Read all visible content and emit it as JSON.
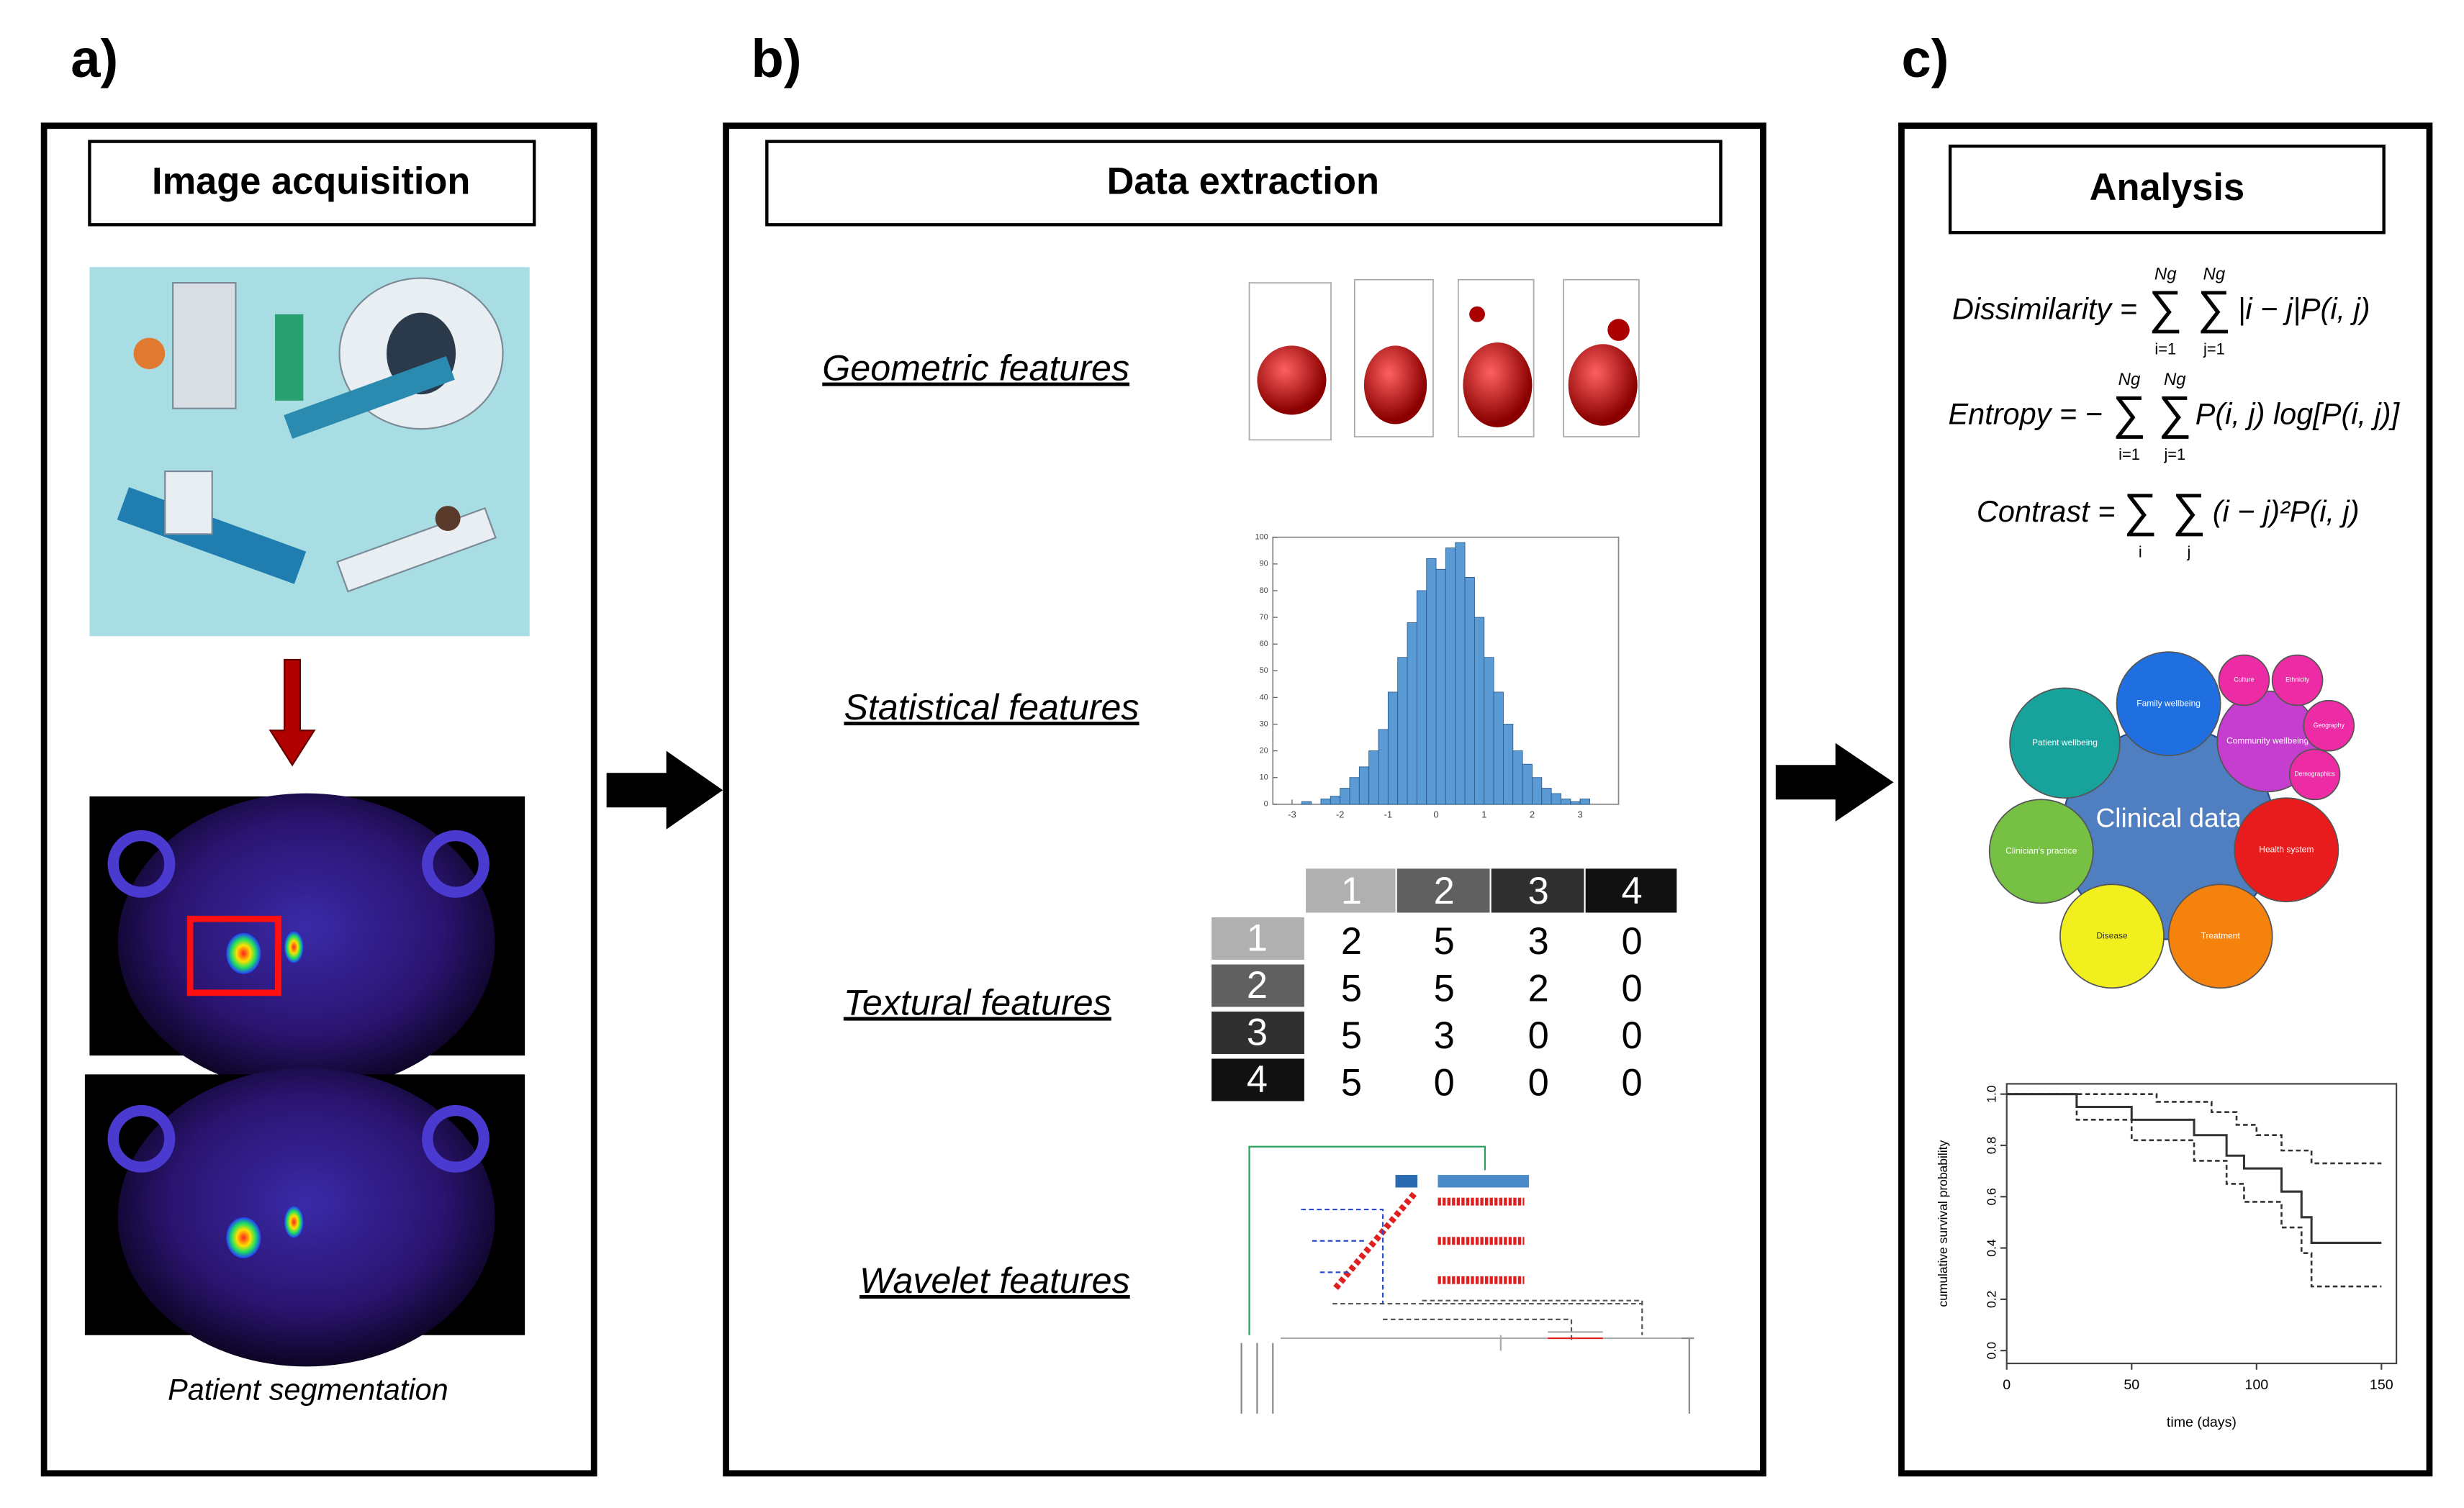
{
  "panels": [
    {
      "label": "a)",
      "title": "Image acquisition",
      "caption": "Patient segmentation"
    },
    {
      "label": "b)",
      "title": "Data extraction",
      "features": [
        "Geometric features",
        "Statistical features",
        "Textural features",
        "Wavelet features"
      ],
      "glcm": {
        "columns": [
          "1",
          "2",
          "3",
          "4"
        ],
        "rows": [
          {
            "label": "1",
            "values": [
              2,
              5,
              3,
              0
            ]
          },
          {
            "label": "2",
            "values": [
              5,
              5,
              2,
              0
            ]
          },
          {
            "label": "3",
            "values": [
              5,
              3,
              0,
              0
            ]
          },
          {
            "label": "4",
            "values": [
              5,
              0,
              0,
              0
            ]
          }
        ]
      },
      "histogram": {
        "type": "histogram",
        "color": "#5b9bd5",
        "bins": [
          -2.8,
          -2.6,
          -2.4,
          -2.2,
          -2,
          -1.8,
          -1.6,
          -1.4,
          -1.2,
          -1,
          -0.8,
          -0.6,
          -0.4,
          -0.2,
          0,
          0.2,
          0.4,
          0.6,
          0.8,
          1,
          1.2,
          1.4,
          1.6,
          1.8,
          2,
          2.2,
          2.4,
          2.6,
          2.8,
          3,
          3.2
        ],
        "counts": [
          1,
          0,
          2,
          3,
          6,
          10,
          14,
          20,
          28,
          42,
          55,
          68,
          80,
          92,
          88,
          96,
          98,
          85,
          70,
          55,
          42,
          30,
          20,
          15,
          10,
          6,
          4,
          2,
          1,
          2
        ],
        "xlim": [
          -3.4,
          3.8
        ],
        "ylim": [
          0,
          100
        ],
        "xticks": [
          -3,
          -2,
          -1,
          0,
          1,
          2,
          3
        ],
        "yticks": [
          0,
          10,
          20,
          30,
          40,
          50,
          60,
          70,
          80,
          90,
          100
        ]
      }
    },
    {
      "label": "c)",
      "title": "Analysis",
      "formulas": [
        {
          "lhs": "Dissimilarity =",
          "sums": [
            {
              "symbol": "∑",
              "upper": "Ng",
              "lower": "i=1"
            },
            {
              "symbol": "∑",
              "upper": "Ng",
              "lower": "j=1"
            }
          ],
          "term": "|i − j|P(i, j)"
        },
        {
          "lhs": "Entropy = −",
          "sums": [
            {
              "symbol": "∑",
              "upper": "Ng",
              "lower": "i=1"
            },
            {
              "symbol": "∑",
              "upper": "Ng",
              "lower": "j=1"
            }
          ],
          "term": "P(i, j) log[P(i, j)]"
        },
        {
          "lhs": "Contrast =",
          "sums": [
            {
              "symbol": "∑",
              "lower": "i"
            },
            {
              "symbol": "∑",
              "lower": "j"
            }
          ],
          "term": "(i − j)²P(i, j)"
        }
      ],
      "clinical": {
        "center": "Clinical data",
        "center_color": "#4f7fc0",
        "domains": [
          {
            "name": "Patient wellbeing",
            "color": "#17a39b"
          },
          {
            "name": "Family wellbeing",
            "color": "#1f6fe0"
          },
          {
            "name": "Community wellbeing",
            "color": "#c63ed0"
          },
          {
            "name": "Culture",
            "color": "#ec2ba5"
          },
          {
            "name": "Ethnicity",
            "color": "#ec2ba5"
          },
          {
            "name": "Geography",
            "color": "#ec2ba5"
          },
          {
            "name": "Demographics",
            "color": "#ec2ba5"
          },
          {
            "name": "Health system",
            "color": "#e81c1c"
          },
          {
            "name": "Treatment",
            "color": "#f5820c"
          },
          {
            "name": "Disease",
            "color": "#f2ef1e"
          },
          {
            "name": "Clinician's practice",
            "color": "#76c043"
          }
        ]
      },
      "survival": {
        "type": "line",
        "xlabel": "time (days)",
        "ylabel": "cumulative survival probability",
        "xlim": [
          0,
          156
        ],
        "ylim": [
          -0.05,
          1.04
        ],
        "xticks": [
          0,
          50,
          100,
          150
        ],
        "yticks": [
          {
            "value": 0,
            "label": "0.0"
          },
          {
            "value": 0.2,
            "label": "0.2"
          },
          {
            "value": 0.4,
            "label": "0.4"
          },
          {
            "value": 0.6,
            "label": "0.6"
          },
          {
            "value": 0.8,
            "label": "0.8"
          },
          {
            "value": 1,
            "label": "1.0"
          }
        ],
        "series": [
          {
            "style": "solid",
            "x": [
              0,
              28,
              28,
              50,
              50,
              75,
              75,
              88,
              88,
              95,
              95,
              110,
              110,
              118,
              118,
              122,
              122,
              150
            ],
            "y": [
              1,
              1,
              0.95,
              0.95,
              0.9,
              0.9,
              0.84,
              0.84,
              0.76,
              0.76,
              0.71,
              0.71,
              0.62,
              0.62,
              0.52,
              0.52,
              0.42,
              0.42
            ]
          },
          {
            "style": "dashed",
            "x": [
              0,
              60,
              60,
              82,
              82,
              92,
              92,
              100,
              100,
              110,
              110,
              122,
              122,
              150
            ],
            "y": [
              1,
              1,
              0.97,
              0.97,
              0.93,
              0.93,
              0.88,
              0.88,
              0.84,
              0.84,
              0.78,
              0.78,
              0.73,
              0.73
            ]
          },
          {
            "style": "dashed",
            "x": [
              0,
              28,
              28,
              50,
              50,
              75,
              75,
              88,
              88,
              95,
              95,
              110,
              110,
              118,
              118,
              122,
              122,
              150
            ],
            "y": [
              1,
              1,
              0.9,
              0.9,
              0.82,
              0.82,
              0.74,
              0.74,
              0.65,
              0.65,
              0.58,
              0.58,
              0.48,
              0.48,
              0.38,
              0.38,
              0.25,
              0.25
            ]
          }
        ]
      }
    }
  ]
}
